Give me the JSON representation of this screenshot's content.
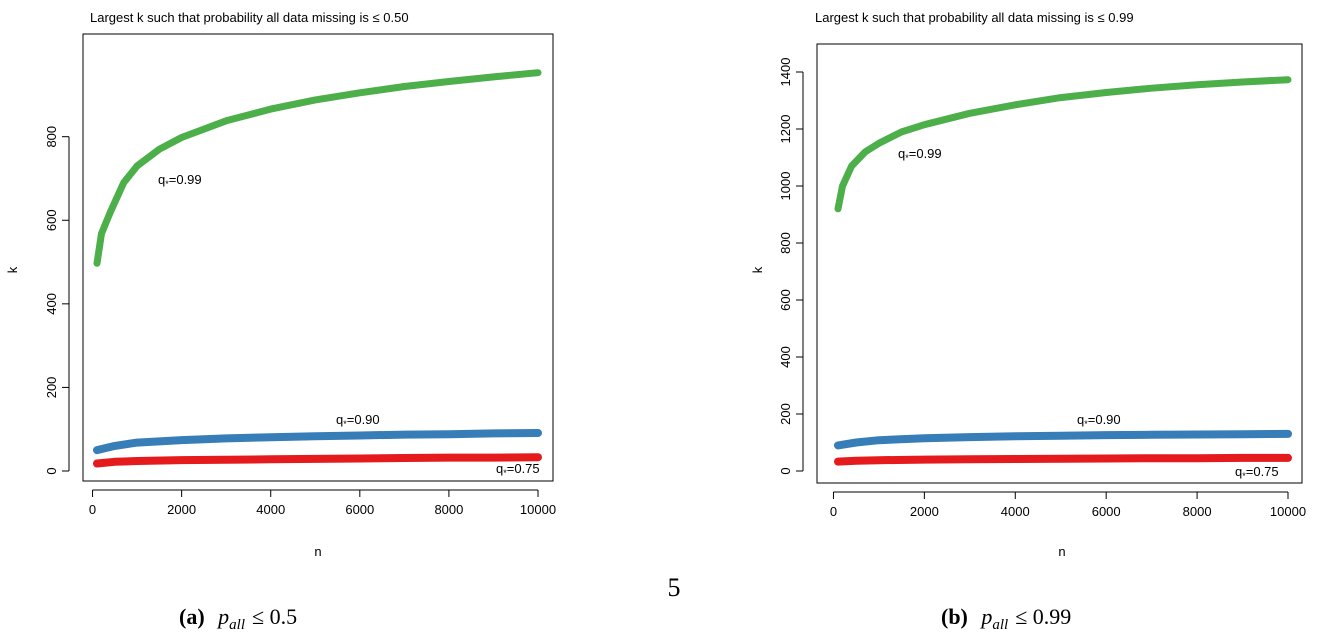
{
  "page_number": "5",
  "colors": {
    "green": "#4daf4a",
    "blue": "#377eb8",
    "red": "#e41a1c",
    "axis": "#000000"
  },
  "chart_data": [
    {
      "type": "line",
      "title": "Largest k such that probability all data missing is  ≤ 0.50",
      "xlabel": "n",
      "ylabel": "k",
      "xlim": [
        100,
        10000
      ],
      "ylim": [
        0,
        950
      ],
      "xticks": [
        0,
        2000,
        4000,
        6000,
        8000,
        10000
      ],
      "yticks": [
        0,
        200,
        400,
        600,
        800
      ],
      "grid": false,
      "legend": "none",
      "caption": {
        "label": "(a)",
        "expr_base": "p",
        "expr_sub": "all",
        "expr_rel": "≤ 0.5"
      },
      "series": [
        {
          "name": "q*=0.99",
          "label_base": "q",
          "label_sub": "*",
          "label_val": "=0.99",
          "color": "green",
          "x": [
            100,
            200,
            400,
            700,
            1000,
            1500,
            2000,
            3000,
            4000,
            5000,
            6000,
            7000,
            8000,
            9000,
            10000
          ],
          "values": [
            497,
            568,
            620,
            690,
            730,
            770,
            798,
            838,
            866,
            888,
            905,
            920,
            932,
            943,
            953
          ]
        },
        {
          "name": "q*=0.90",
          "label_base": "q",
          "label_sub": "*",
          "label_val": "=0.90",
          "color": "blue",
          "x": [
            100,
            500,
            1000,
            2000,
            3000,
            4000,
            5000,
            6000,
            7000,
            8000,
            9000,
            10000
          ],
          "values": [
            50,
            60,
            68,
            74,
            78,
            81,
            83,
            85,
            87,
            88,
            90,
            91
          ]
        },
        {
          "name": "q*=0.75",
          "label_base": "q",
          "label_sub": "*",
          "label_val": "=0.75",
          "color": "red",
          "x": [
            100,
            500,
            1000,
            2000,
            3000,
            4000,
            5000,
            6000,
            7000,
            8000,
            9000,
            10000
          ],
          "values": [
            18,
            22,
            24,
            26,
            27,
            28,
            29,
            30,
            31,
            32,
            32,
            33
          ]
        }
      ]
    },
    {
      "type": "line",
      "title": "Largest k such that probability all data missing is  ≤ 0.99",
      "xlabel": "n",
      "ylabel": "k",
      "xlim": [
        100,
        10000
      ],
      "ylim": [
        0,
        1400
      ],
      "xticks": [
        0,
        2000,
        4000,
        6000,
        8000,
        10000
      ],
      "yticks": [
        0,
        200,
        400,
        600,
        800,
        1000,
        1200,
        1400
      ],
      "grid": false,
      "legend": "none",
      "caption": {
        "label": "(b)",
        "expr_base": "p",
        "expr_sub": "all",
        "expr_rel": "≤ 0.99"
      },
      "series": [
        {
          "name": "q*=0.99",
          "label_base": "q",
          "label_sub": "*",
          "label_val": "=0.99",
          "color": "green",
          "x": [
            100,
            200,
            400,
            700,
            1000,
            1500,
            2000,
            3000,
            4000,
            5000,
            6000,
            7000,
            8000,
            9000,
            10000
          ],
          "values": [
            920,
            1000,
            1070,
            1120,
            1150,
            1190,
            1215,
            1255,
            1285,
            1310,
            1328,
            1343,
            1355,
            1365,
            1373
          ]
        },
        {
          "name": "q*=0.90",
          "label_base": "q",
          "label_sub": "*",
          "label_val": "=0.90",
          "color": "blue",
          "x": [
            100,
            500,
            1000,
            2000,
            3000,
            4000,
            5000,
            6000,
            7000,
            8000,
            9000,
            10000
          ],
          "values": [
            90,
            100,
            108,
            115,
            119,
            122,
            124,
            126,
            127,
            128,
            129,
            130
          ]
        },
        {
          "name": "q*=0.75",
          "label_base": "q",
          "label_sub": "*",
          "label_val": "=0.75",
          "color": "red",
          "x": [
            100,
            500,
            1000,
            2000,
            3000,
            4000,
            5000,
            6000,
            7000,
            8000,
            9000,
            10000
          ],
          "values": [
            33,
            36,
            38,
            40,
            41,
            42,
            43,
            44,
            45,
            45,
            46,
            46
          ]
        }
      ]
    }
  ]
}
